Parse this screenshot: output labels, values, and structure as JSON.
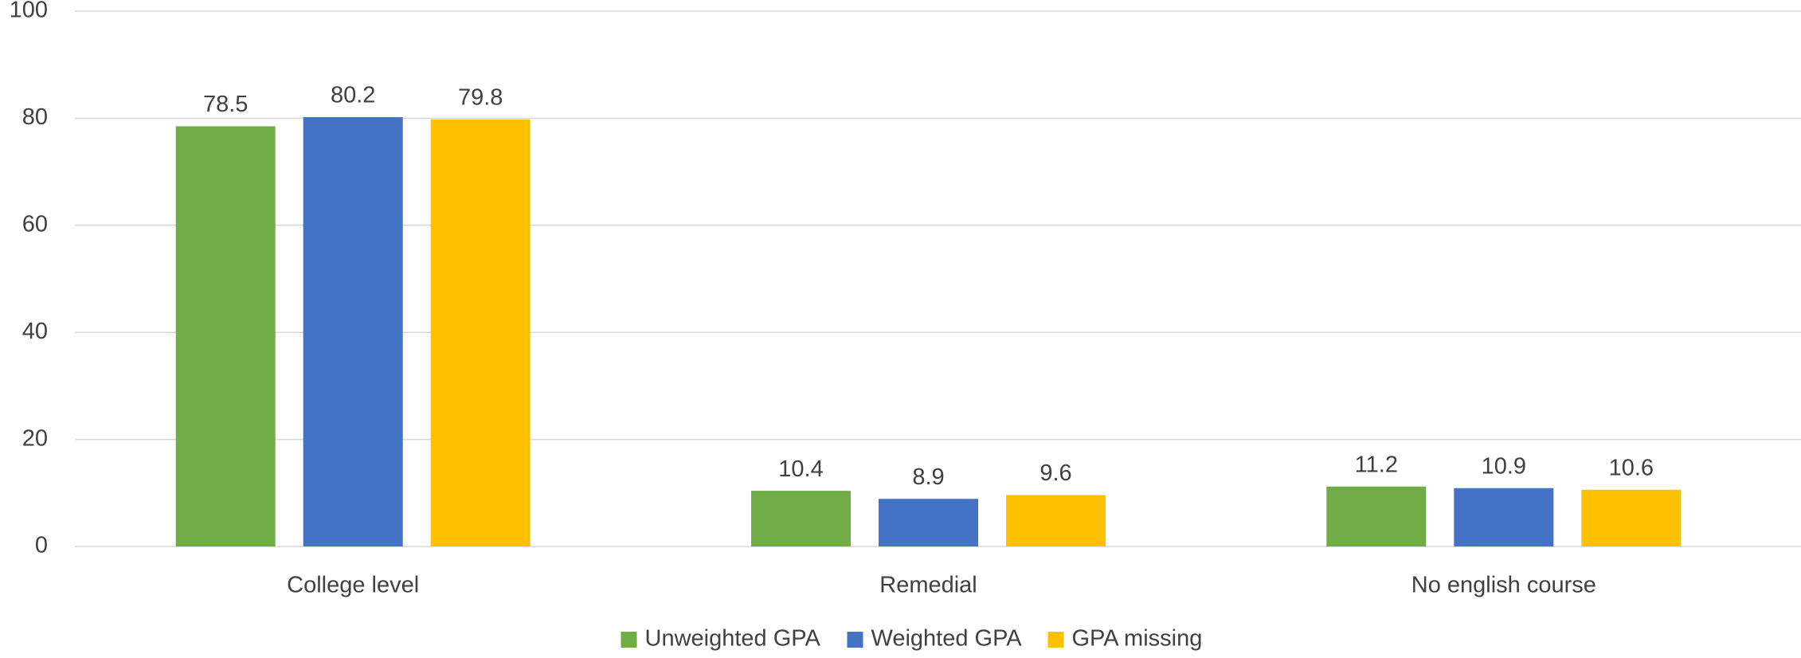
{
  "chart_data": {
    "type": "bar",
    "categories": [
      "College level",
      "Remedial",
      "No english course"
    ],
    "series": [
      {
        "name": "Unweighted GPA",
        "color": "#70ad47",
        "values": [
          78.5,
          10.4,
          11.2
        ]
      },
      {
        "name": "Weighted GPA",
        "color": "#4472c4",
        "values": [
          80.2,
          8.9,
          10.9
        ]
      },
      {
        "name": "GPA missing",
        "color": "#ffc000",
        "values": [
          79.8,
          9.6,
          10.6
        ]
      }
    ],
    "ylim": [
      0,
      100
    ],
    "yticks": [
      0,
      20,
      40,
      60,
      80,
      100
    ],
    "grid": true,
    "legend": "bottom"
  }
}
